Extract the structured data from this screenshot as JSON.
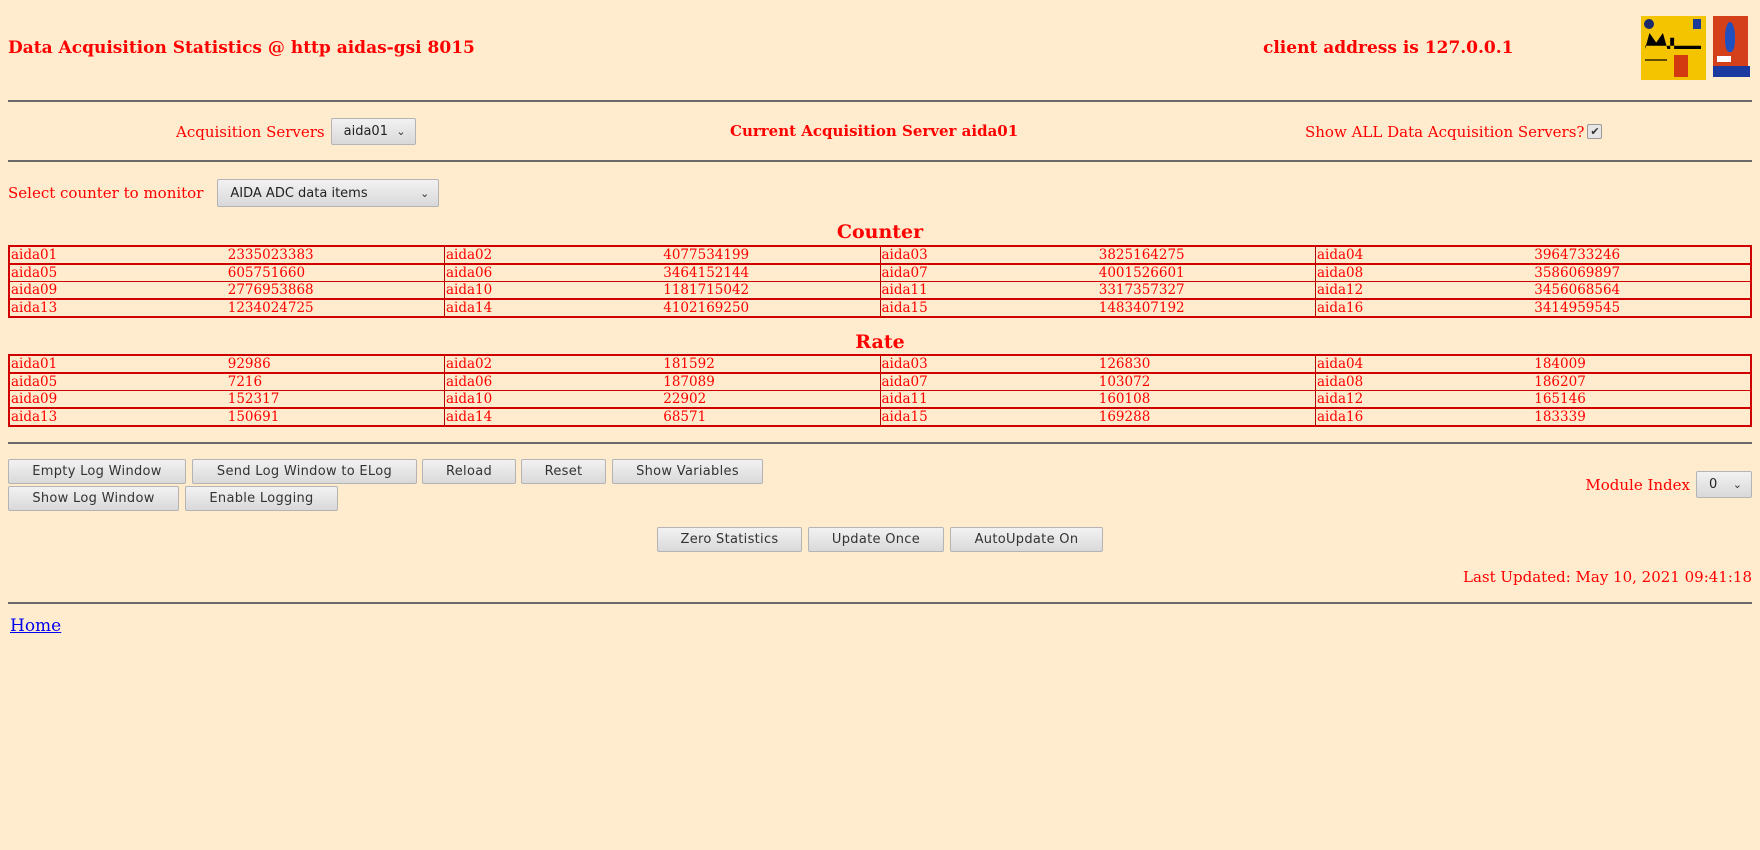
{
  "header": {
    "title": "Data Acquisition Statistics @ http aidas-gsi 8015",
    "client_address": "client address is 127.0.0.1",
    "logos": [
      "Midas",
      "TCL POWERED"
    ]
  },
  "servers": {
    "label": "Acquisition Servers",
    "selected": "aida01",
    "current": "Current Acquisition Server aida01",
    "show_all_label": "Show ALL Data Acquisition Servers?",
    "show_all_checked": true
  },
  "counter_select": {
    "label": "Select counter to monitor",
    "selected": "AIDA ADC data items"
  },
  "counter": {
    "heading": "Counter",
    "rows": [
      [
        [
          "aida01",
          "2335023383"
        ],
        [
          "aida02",
          "4077534199"
        ],
        [
          "aida03",
          "3825164275"
        ],
        [
          "aida04",
          "3964733246"
        ]
      ],
      [
        [
          "aida05",
          "605751660"
        ],
        [
          "aida06",
          "3464152144"
        ],
        [
          "aida07",
          "4001526601"
        ],
        [
          "aida08",
          "3586069897"
        ]
      ],
      [
        [
          "aida09",
          "2776953868"
        ],
        [
          "aida10",
          "1181715042"
        ],
        [
          "aida11",
          "3317357327"
        ],
        [
          "aida12",
          "3456068564"
        ]
      ],
      [
        [
          "aida13",
          "1234024725"
        ],
        [
          "aida14",
          "4102169250"
        ],
        [
          "aida15",
          "1483407192"
        ],
        [
          "aida16",
          "3414959545"
        ]
      ]
    ]
  },
  "rate": {
    "heading": "Rate",
    "rows": [
      [
        [
          "aida01",
          "92986"
        ],
        [
          "aida02",
          "181592"
        ],
        [
          "aida03",
          "126830"
        ],
        [
          "aida04",
          "184009"
        ]
      ],
      [
        [
          "aida05",
          "7216"
        ],
        [
          "aida06",
          "187089"
        ],
        [
          "aida07",
          "103072"
        ],
        [
          "aida08",
          "186207"
        ]
      ],
      [
        [
          "aida09",
          "152317"
        ],
        [
          "aida10",
          "22902"
        ],
        [
          "aida11",
          "160108"
        ],
        [
          "aida12",
          "165146"
        ]
      ],
      [
        [
          "aida13",
          "150691"
        ],
        [
          "aida14",
          "68571"
        ],
        [
          "aida15",
          "169288"
        ],
        [
          "aida16",
          "183339"
        ]
      ]
    ]
  },
  "buttons": {
    "empty_log": "Empty Log Window",
    "send_log": "Send Log Window to ELog",
    "reload": "Reload",
    "reset": "Reset",
    "show_variables": "Show Variables",
    "show_log": "Show Log Window",
    "enable_logging": "Enable Logging",
    "zero_statistics": "Zero Statistics",
    "update_once": "Update Once",
    "autoupdate": "AutoUpdate On"
  },
  "module_index": {
    "label": "Module Index",
    "selected": "0"
  },
  "last_updated": "Last Updated: May 10, 2021 09:41:18",
  "footer": {
    "home": "Home"
  },
  "colors": {
    "background": "#ffebcd",
    "text": "#ff0000",
    "border": "#d00000",
    "link": "#0000ee"
  }
}
